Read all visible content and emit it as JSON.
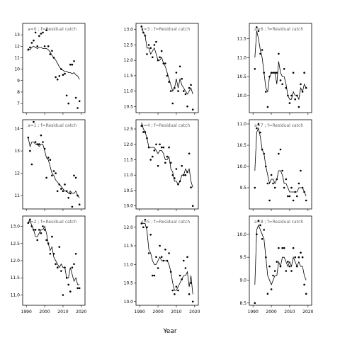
{
  "figure": {
    "xlabel": "Year"
  },
  "chart_data": [
    {
      "type": "scatter",
      "title": "a=0 ;  f=Residual catch",
      "xlim": [
        1988,
        2022
      ],
      "ylim": [
        6.2,
        14.0
      ],
      "x_ticks": [
        1990,
        2000,
        2010,
        2020
      ],
      "show_x_tick_labels": false,
      "y_ticks": [
        7,
        8,
        9,
        10,
        11,
        12,
        13
      ],
      "line": "smooth",
      "x": [
        1991,
        1992,
        1993,
        1994,
        1995,
        1996,
        1997,
        1998,
        1999,
        2000,
        2001,
        2002,
        2003,
        2004,
        2005,
        2006,
        2007,
        2008,
        2009,
        2010,
        2011,
        2012,
        2013,
        2014,
        2015,
        2016,
        2017,
        2018,
        2019
      ],
      "y": [
        11.7,
        11.9,
        12.3,
        12.5,
        13.2,
        12.0,
        12.9,
        13.1,
        13.2,
        12.0,
        13.4,
        12.0,
        11.3,
        11.6,
        11.0,
        9.3,
        9.1,
        9.4,
        10.0,
        9.5,
        9.6,
        7.7,
        7.0,
        10.4,
        10.4,
        10.7,
        7.5,
        6.6,
        7.2
      ],
      "fit": [
        11.8,
        11.7,
        11.9,
        12.0,
        11.9,
        11.8,
        11.9,
        11.9,
        11.8,
        11.8,
        11.8,
        11.7,
        11.5,
        11.2,
        11.0,
        10.8,
        10.5,
        10.2,
        10.0,
        9.9,
        9.8,
        9.8,
        9.7,
        9.7,
        9.6,
        9.7,
        9.5,
        9.4,
        9.1
      ]
    },
    {
      "type": "scatter",
      "title": "a=1 ;  f=Residual catch",
      "xlim": [
        1988,
        2022
      ],
      "ylim": [
        10.4,
        14.4
      ],
      "x_ticks": [
        1990,
        2000,
        2010,
        2020
      ],
      "show_x_tick_labels": false,
      "y_ticks": [
        11,
        12,
        13,
        14
      ],
      "line": "smooth",
      "x": [
        1991,
        1992,
        1993,
        1994,
        1995,
        1996,
        1997,
        1998,
        1999,
        2000,
        2001,
        2002,
        2003,
        2004,
        2005,
        2006,
        2007,
        2008,
        2009,
        2010,
        2011,
        2012,
        2013,
        2014,
        2015,
        2016,
        2017,
        2018,
        2019
      ],
      "y": [
        13.6,
        13.0,
        12.4,
        14.3,
        13.4,
        13.3,
        13.3,
        13.7,
        13.4,
        13.1,
        11.8,
        12.7,
        12.6,
        11.9,
        12.1,
        12.0,
        11.2,
        11.5,
        11.3,
        11.2,
        11.5,
        11.2,
        10.9,
        11.1,
        10.5,
        11.9,
        11.8,
        11.0,
        10.6
      ],
      "fit": [
        13.6,
        13.2,
        13.4,
        13.4,
        13.3,
        13.3,
        13.2,
        13.3,
        13.3,
        13.0,
        12.7,
        12.6,
        12.3,
        12.0,
        11.9,
        11.7,
        11.6,
        11.5,
        11.4,
        11.3,
        11.2,
        11.2,
        11.1,
        11.2,
        11.1,
        11.1,
        11.2,
        11.0,
        10.9
      ]
    },
    {
      "type": "scatter",
      "title": "a=2 ;  f=Residual catch",
      "xlim": [
        1988,
        2022
      ],
      "ylim": [
        10.7,
        13.3
      ],
      "x_ticks": [
        1990,
        2000,
        2010,
        2020
      ],
      "show_x_tick_labels": true,
      "y_ticks": [
        11.0,
        11.5,
        12.0,
        12.5,
        13.0
      ],
      "line": "poly",
      "x": [
        1991,
        1992,
        1993,
        1994,
        1995,
        1996,
        1997,
        1998,
        1999,
        2000,
        2001,
        2002,
        2003,
        2004,
        2005,
        2006,
        2007,
        2008,
        2009,
        2010,
        2011,
        2012,
        2013,
        2014,
        2015,
        2016,
        2017,
        2018,
        2019
      ],
      "y": [
        13.1,
        13.2,
        13.0,
        12.9,
        12.9,
        12.6,
        12.9,
        12.8,
        13.0,
        12.9,
        12.6,
        12.5,
        12.2,
        12.7,
        12.2,
        11.9,
        11.8,
        12.4,
        11.7,
        11.0,
        11.8,
        11.5,
        11.3,
        11.1,
        11.8,
        11.9,
        12.2,
        11.2,
        11.2
      ],
      "fit": [
        13.1,
        13.2,
        13.0,
        12.9,
        12.7,
        12.7,
        12.8,
        12.9,
        12.9,
        13.0,
        12.8,
        12.5,
        12.3,
        12.4,
        12.1,
        12.0,
        11.9,
        11.8,
        11.9,
        11.8,
        11.8,
        11.5,
        11.5,
        11.8,
        11.6,
        11.4,
        11.5,
        11.3,
        11.3
      ]
    },
    {
      "type": "scatter",
      "title": "a=3 ;  f=Residual catch",
      "xlim": [
        1988,
        2022
      ],
      "ylim": [
        10.3,
        13.2
      ],
      "x_ticks": [
        1990,
        2000,
        2010,
        2020
      ],
      "show_x_tick_labels": false,
      "y_ticks": [
        10.5,
        11.0,
        11.5,
        12.0,
        12.5,
        13.0
      ],
      "line": "poly",
      "x": [
        1991,
        1992,
        1993,
        1994,
        1995,
        1996,
        1997,
        1998,
        1999,
        2000,
        2001,
        2002,
        2003,
        2004,
        2005,
        2006,
        2007,
        2008,
        2009,
        2010,
        2011,
        2012,
        2013,
        2014,
        2015,
        2016,
        2017,
        2018,
        2019
      ],
      "y": [
        13.1,
        12.9,
        12.8,
        12.2,
        12.5,
        12.4,
        12.1,
        12.5,
        12.6,
        12.0,
        12.1,
        12.3,
        11.9,
        11.9,
        11.5,
        11.3,
        11.0,
        10.6,
        11.1,
        11.6,
        11.0,
        11.8,
        11.4,
        11.0,
        10.9,
        10.5,
        11.1,
        11.2,
        10.4
      ],
      "fit": [
        13.1,
        12.9,
        12.8,
        12.4,
        12.4,
        12.2,
        12.3,
        12.4,
        12.2,
        12.0,
        12.0,
        12.1,
        11.9,
        11.8,
        11.6,
        11.4,
        11.2,
        11.0,
        11.1,
        11.4,
        11.1,
        11.4,
        11.2,
        11.1,
        11.0,
        10.9,
        11.0,
        11.1,
        10.9
      ]
    },
    {
      "type": "scatter",
      "title": "a=4 ;  f=Residual catch",
      "xlim": [
        1988,
        2022
      ],
      "ylim": [
        9.9,
        12.8
      ],
      "x_ticks": [
        1990,
        2000,
        2010,
        2020
      ],
      "show_x_tick_labels": false,
      "y_ticks": [
        10.0,
        10.5,
        11.0,
        11.5,
        12.0,
        12.5
      ],
      "line": "poly",
      "x": [
        1991,
        1992,
        1993,
        1994,
        1995,
        1996,
        1997,
        1998,
        1999,
        2000,
        2001,
        2002,
        2003,
        2004,
        2005,
        2006,
        2007,
        2008,
        2009,
        2010,
        2011,
        2012,
        2013,
        2014,
        2015,
        2016,
        2017,
        2018,
        2019
      ],
      "y": [
        12.6,
        12.4,
        12.4,
        12.2,
        11.9,
        11.5,
        11.6,
        11.8,
        12.0,
        11.3,
        12.0,
        11.9,
        11.9,
        11.4,
        11.6,
        11.9,
        11.4,
        11.0,
        10.9,
        11.2,
        10.7,
        10.8,
        11.3,
        11.0,
        11.0,
        11.1,
        11.7,
        10.6,
        10.0
      ],
      "fit": [
        12.7,
        12.5,
        12.4,
        12.2,
        11.9,
        11.9,
        11.9,
        11.9,
        11.8,
        11.7,
        11.8,
        11.8,
        11.7,
        11.5,
        11.5,
        11.6,
        11.2,
        11.1,
        10.8,
        10.8,
        10.7,
        10.8,
        11.0,
        11.0,
        11.2,
        11.1,
        11.2,
        10.8,
        10.6
      ]
    },
    {
      "type": "scatter",
      "title": "a=5 ;  f=Residual catch",
      "xlim": [
        1988,
        2022
      ],
      "ylim": [
        9.9,
        12.3
      ],
      "x_ticks": [
        1990,
        2000,
        2010,
        2020
      ],
      "show_x_tick_labels": true,
      "y_ticks": [
        10.0,
        10.5,
        11.0,
        11.5,
        12.0
      ],
      "line": "poly",
      "x": [
        1991,
        1992,
        1993,
        1994,
        1995,
        1996,
        1997,
        1998,
        1999,
        2000,
        2001,
        2002,
        2003,
        2004,
        2005,
        2006,
        2007,
        2008,
        2009,
        2010,
        2011,
        2012,
        2013,
        2014,
        2015,
        2016,
        2017,
        2018,
        2019
      ],
      "y": [
        12.1,
        12.0,
        12.2,
        12.0,
        11.3,
        11.8,
        10.7,
        10.7,
        11.2,
        10.9,
        11.5,
        11.2,
        11.1,
        11.4,
        11.1,
        11.3,
        10.8,
        10.3,
        10.2,
        10.4,
        10.3,
        10.7,
        10.6,
        11.1,
        10.9,
        11.2,
        10.2,
        10.5,
        10.0
      ],
      "fit": [
        12.1,
        12.1,
        12.1,
        11.9,
        11.4,
        11.3,
        11.1,
        11.0,
        11.0,
        11.1,
        11.2,
        11.1,
        11.1,
        11.1,
        11.1,
        11.0,
        10.8,
        10.5,
        10.3,
        10.3,
        10.4,
        10.5,
        10.6,
        10.7,
        10.7,
        10.8,
        10.4,
        10.7,
        10.2
      ]
    },
    {
      "type": "scatter",
      "title": "a=6 ;  f=Residual catch",
      "xlim": [
        1988,
        2022
      ],
      "ylim": [
        9.55,
        11.9
      ],
      "x_ticks": [
        1990,
        2000,
        2010,
        2020
      ],
      "show_x_tick_labels": false,
      "y_ticks": [
        10.0,
        10.5,
        11.0,
        11.5
      ],
      "line": "poly",
      "x": [
        1991,
        1992,
        1993,
        1994,
        1995,
        1996,
        1997,
        1998,
        1999,
        2000,
        2001,
        2002,
        2003,
        2004,
        2005,
        2006,
        2007,
        2008,
        2009,
        2010,
        2011,
        2012,
        2013,
        2014,
        2015,
        2016,
        2017,
        2018,
        2019
      ],
      "y": [
        10.7,
        11.8,
        11.7,
        11.1,
        11.2,
        10.6,
        10.1,
        9.7,
        10.5,
        10.6,
        10.6,
        10.6,
        10.6,
        11.1,
        10.4,
        10.3,
        10.7,
        10.2,
        10.0,
        9.8,
        10.0,
        10.6,
        9.9,
        10.0,
        9.7,
        10.3,
        10.1,
        10.6,
        10.2
      ],
      "fit": [
        11.0,
        11.7,
        11.5,
        11.2,
        11.0,
        10.6,
        10.2,
        10.1,
        10.5,
        10.6,
        10.6,
        10.6,
        10.3,
        10.9,
        10.6,
        10.5,
        10.5,
        10.3,
        10.0,
        9.9,
        9.9,
        10.1,
        10.0,
        10.0,
        9.9,
        10.2,
        10.1,
        10.3,
        10.2
      ]
    },
    {
      "type": "scatter",
      "title": "a=7 ;  f=Residual catch",
      "xlim": [
        1988,
        2022
      ],
      "ylim": [
        9.0,
        11.1
      ],
      "x_ticks": [
        1990,
        2000,
        2010,
        2020
      ],
      "show_x_tick_labels": false,
      "y_ticks": [
        9.5,
        10.0,
        10.5,
        11.0
      ],
      "line": "poly",
      "x": [
        1991,
        1992,
        1993,
        1994,
        1995,
        1996,
        1997,
        1998,
        1999,
        2000,
        2001,
        2002,
        2003,
        2004,
        2005,
        2006,
        2007,
        2008,
        2009,
        2010,
        2011,
        2012,
        2013,
        2014,
        2015,
        2016,
        2017,
        2018,
        2019
      ],
      "y": [
        9.5,
        10.9,
        11.0,
        10.8,
        10.4,
        10.3,
        10.0,
        9.6,
        9.2,
        9.8,
        9.6,
        9.5,
        9.7,
        10.3,
        10.4,
        9.9,
        9.5,
        9.7,
        9.3,
        9.3,
        9.5,
        9.2,
        9.4,
        9.3,
        9.6,
        9.9,
        9.5,
        9.4,
        9.2
      ],
      "fit": [
        9.9,
        10.8,
        10.9,
        10.7,
        10.4,
        10.3,
        10.0,
        9.8,
        9.6,
        9.7,
        9.7,
        9.6,
        9.7,
        9.9,
        9.9,
        9.8,
        9.6,
        9.6,
        9.5,
        9.4,
        9.4,
        9.4,
        9.4,
        9.4,
        9.5,
        9.5,
        9.5,
        9.4,
        9.3
      ]
    },
    {
      "type": "scatter",
      "title": "a=8 ;  f=Residual catch",
      "xlim": [
        1988,
        2022
      ],
      "ylim": [
        8.45,
        10.4
      ],
      "x_ticks": [
        1990,
        2000,
        2010,
        2020
      ],
      "show_x_tick_labels": true,
      "y_ticks": [
        8.5,
        9.0,
        9.5,
        10.0
      ],
      "line": "poly",
      "x": [
        1991,
        1992,
        1993,
        1994,
        1995,
        1996,
        1997,
        1998,
        1999,
        2000,
        2001,
        2002,
        2003,
        2004,
        2005,
        2006,
        2007,
        2008,
        2009,
        2010,
        2011,
        2012,
        2013,
        2014,
        2015,
        2016,
        2017,
        2018,
        2019
      ],
      "y": [
        8.5,
        10.0,
        10.3,
        10.2,
        9.9,
        10.1,
        9.5,
        8.7,
        9.3,
        8.8,
        9.1,
        9.2,
        9.4,
        9.7,
        9.3,
        9.7,
        9.7,
        9.2,
        9.4,
        9.3,
        9.2,
        9.7,
        9.5,
        9.3,
        9.5,
        9.6,
        9.5,
        8.9,
        8.7
      ],
      "fit": [
        8.9,
        10.1,
        10.2,
        10.1,
        10.0,
        9.9,
        9.5,
        9.1,
        9.0,
        8.9,
        9.0,
        9.1,
        9.1,
        9.4,
        9.3,
        9.5,
        9.5,
        9.4,
        9.3,
        9.4,
        9.3,
        9.5,
        9.4,
        9.3,
        9.4,
        9.3,
        9.3,
        9.1,
        9.0
      ]
    }
  ]
}
